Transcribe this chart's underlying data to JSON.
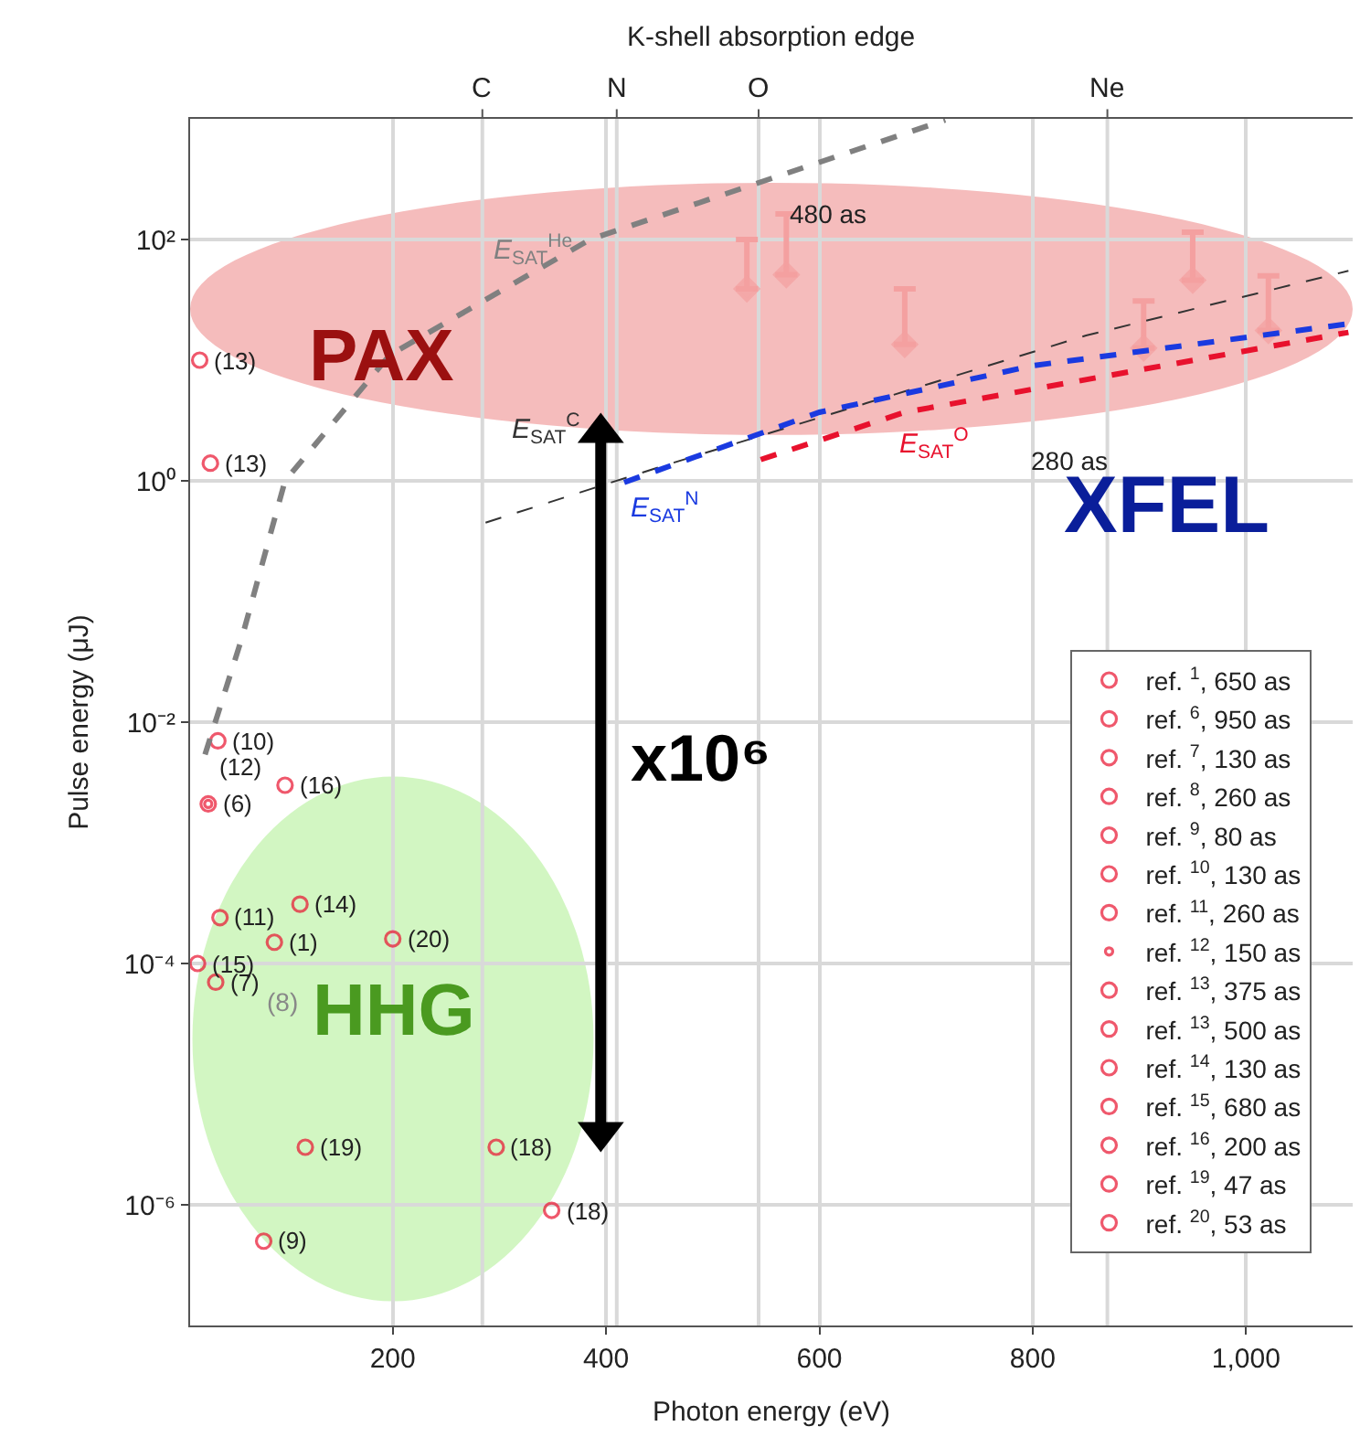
{
  "chart_data": {
    "type": "scatter",
    "x2label": "K-shell absorption edge",
    "xlabel": "Photon energy (eV)",
    "ylabel": "Pulse energy (μJ)",
    "xlim": [
      10,
      1100
    ],
    "xticks": [
      200,
      400,
      600,
      800,
      {
        "value": 1000,
        "label": "1,000"
      }
    ],
    "ylim": [
      1e-07,
      1000
    ],
    "yticks": [
      {
        "value": 1e-06,
        "label": "10⁻⁶"
      },
      {
        "value": 0.0001,
        "label": "10⁻⁴"
      },
      {
        "value": 0.01,
        "label": "10⁻²"
      },
      {
        "value": 1,
        "label": "10⁰"
      },
      {
        "value": 100,
        "label": "10²"
      }
    ],
    "log": "y",
    "grid": true,
    "legend": "bottom right",
    "ref_lines": [
      {
        "axis": "x",
        "value": 284,
        "label": "C"
      },
      {
        "axis": "x",
        "value": 410,
        "label": "N"
      },
      {
        "axis": "x",
        "value": 543,
        "label": "O"
      },
      {
        "axis": "x",
        "value": 870,
        "label": "Ne"
      }
    ],
    "series": [
      {
        "name": "ref. $^{1}$, 650 as",
        "color": "#e8112d",
        "marker": "circle",
        "x": [
          89
        ],
        "values": [
          0.00015
        ]
      },
      {
        "name": "ref. $^{6}$, 950 as",
        "color": "#e8112d",
        "marker": "circle",
        "x": [
          27
        ],
        "values": [
          0.0021
        ]
      },
      {
        "name": "ref. $^{7}$, 130 as",
        "color": "#e8112d",
        "marker": "circle",
        "x": [
          34
        ],
        "values": [
          7e-05
        ]
      },
      {
        "name": "ref. $^{8}$, 260 as",
        "color": "#e8112d",
        "marker": "circle",
        "values": [
          null
        ]
      },
      {
        "name": "ref. $^{9}$, 80 as",
        "color": "#e8112d",
        "marker": "circle",
        "x": [
          79
        ],
        "values": [
          5e-07
        ]
      },
      {
        "name": "ref. $^{10}$, 130 as",
        "color": "#e8112d",
        "marker": "circle",
        "x": [
          36
        ],
        "values": [
          0.007
        ]
      },
      {
        "name": "ref. $^{11}$, 260 as",
        "color": "#e8112d",
        "marker": "circle",
        "x": [
          38
        ],
        "values": [
          0.00024
        ]
      },
      {
        "name": "ref. $^{12}$, 150 as",
        "color": "#e8112d",
        "marker": "circle",
        "x": [
          27
        ],
        "values": [
          0.0021
        ]
      },
      {
        "name": "ref. $^{13}$, 375 as",
        "color": "#e8112d",
        "marker": "circle",
        "x": [
          29
        ],
        "values": [
          1.4
        ]
      },
      {
        "name": "ref. $^{13}$, 500 as",
        "color": "#e8112d",
        "marker": "circle",
        "x": [
          19
        ],
        "values": [
          10
        ]
      },
      {
        "name": "ref. $^{14}$, 130 as",
        "color": "#e8112d",
        "marker": "circle",
        "x": [
          113
        ],
        "values": [
          0.00031
        ]
      },
      {
        "name": "ref. $^{15}$, 680 as",
        "color": "#e8112d",
        "marker": "circle",
        "x": [
          17
        ],
        "values": [
          0.0001
        ]
      },
      {
        "name": "ref. $^{16}$, 200 as",
        "color": "#e8112d",
        "marker": "circle",
        "x": [
          99
        ],
        "values": [
          0.003
        ]
      },
      {
        "name": "ref. $^{19}$, 47 as",
        "color": "#e8112d",
        "marker": "circle",
        "x": [
          118
        ],
        "values": [
          3e-06
        ]
      },
      {
        "name": "ref. $^{20}$, 53 as",
        "color": "#e8112d",
        "marker": "circle",
        "x": [
          200
        ],
        "values": [
          0.00016
        ]
      },
      {
        "color": "#e8112d",
        "marker": "circle",
        "x": [
          297,
          349
        ],
        "values": [
          3e-06,
          9e-07
        ]
      },
      {
        "color": "#f4a0a0",
        "marker": "diamond",
        "x": [
          532,
          569,
          680,
          904,
          950,
          1021
        ],
        "values": [
          39,
          51,
          13.5,
          12.6,
          46,
          17.6
        ],
        "errors": [
          [
            39,
            100
          ],
          [
            51,
            163
          ],
          [
            13.5,
            39
          ],
          [
            12.6,
            31
          ],
          [
            46,
            115
          ],
          [
            17.6,
            50
          ]
        ]
      },
      {
        "type": "line",
        "name": "E$_{SAT}$$^{He}$",
        "color": "#808080",
        "line_style": "dashed",
        "x": [
          24,
          58,
          99,
          197,
          385,
          718
        ],
        "values": [
          0.0054,
          0.048,
          1,
          11,
          100,
          980
        ]
      },
      {
        "type": "line",
        "name": "E$_{SAT}$$^{C}$",
        "color": "#333333",
        "line_style": "dashed",
        "x": [
          287,
          450,
          644,
          850,
          1096
        ],
        "values": [
          0.45,
          1.3,
          4.4,
          16,
          55
        ]
      },
      {
        "type": "line",
        "name": "E$_{SAT}$$^{N}$",
        "color": "#1a3ae0",
        "line_style": "dashed",
        "x": [
          417,
          600,
          800,
          1096
        ],
        "values": [
          0.97,
          3.7,
          9,
          20
        ]
      },
      {
        "type": "line",
        "name": "E$_{SAT}$$^{O}$",
        "color": "#e8112d",
        "line_style": "dashed",
        "x": [
          545,
          680,
          1096
        ],
        "values": [
          1.5,
          3.7,
          17
        ]
      },
      {
        "type": "line",
        "color": "#000000",
        "marker": "triangle",
        "line_style": "solid",
        "x": [
          395,
          395
        ],
        "values": [
          2.5,
          4e-06
        ]
      }
    ],
    "annotations": [
      {
        "text": "(1)",
        "x": 89,
        "y": 0.00015
      },
      {
        "text": "(6)",
        "x": 27,
        "y": 0.0021
      },
      {
        "text": "(7)",
        "x": 34,
        "y": 7e-05
      },
      {
        "text": "(9)",
        "x": 79,
        "y": 5e-07
      },
      {
        "text": "(10)",
        "x": 36,
        "y": 0.007
      },
      {
        "text": "(11)",
        "x": 38,
        "y": 0.00024
      },
      {
        "text": "(12)",
        "x": 27,
        "y": 0.0021
      },
      {
        "text": "(13)",
        "x": 29,
        "y": 1.4
      },
      {
        "text": "(13)",
        "x": 19,
        "y": 10
      },
      {
        "text": "(14)",
        "x": 113,
        "y": 0.00031
      },
      {
        "text": "(15)",
        "x": 17,
        "y": 0.0001
      },
      {
        "text": "(16)",
        "x": 99,
        "y": 0.003
      },
      {
        "text": "(19)",
        "x": 118,
        "y": 3e-06
      },
      {
        "text": "(20)",
        "x": 200,
        "y": 0.00016
      },
      {
        "text": "(18)",
        "x": 297,
        "y": 3e-06
      },
      {
        "text": "(18)",
        "x": 349,
        "y": 9e-07
      },
      "480 as",
      "280 as",
      "(8)",
      "PAX",
      "XFEL",
      "HHG",
      "x10⁶"
    ]
  }
}
